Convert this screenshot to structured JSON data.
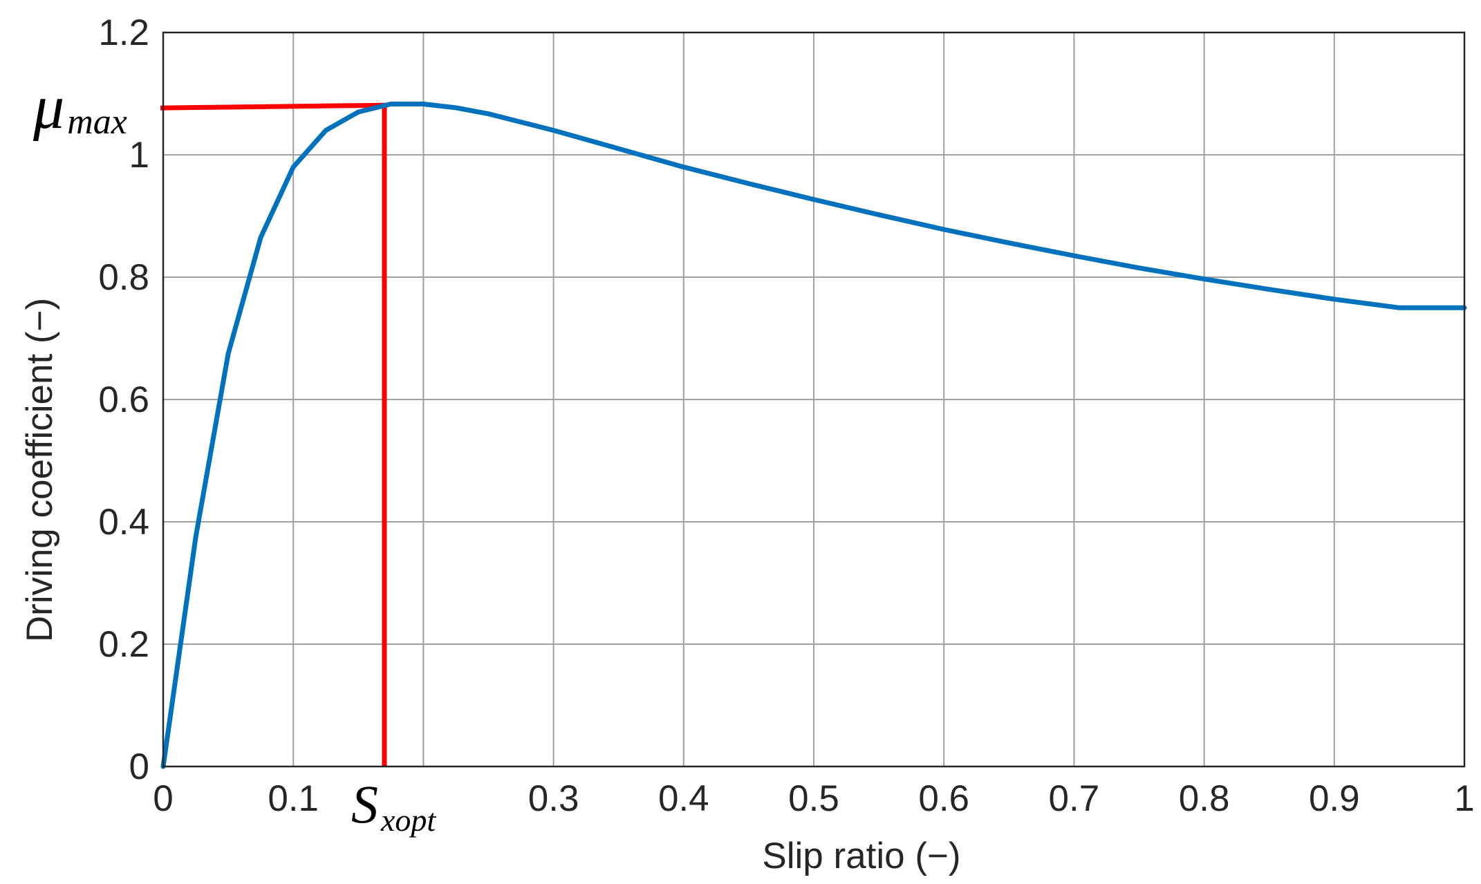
{
  "chart_data": {
    "type": "line",
    "xlabel": "Slip ratio  (−)",
    "ylabel": "Driving coefficient (−)",
    "xlim": [
      0,
      1
    ],
    "ylim": [
      0,
      1.2
    ],
    "x_ticks": [
      {
        "value": 0,
        "label": "0"
      },
      {
        "value": 0.1,
        "label": "0.1"
      },
      {
        "value": 0.3,
        "label": "0.3"
      },
      {
        "value": 0.4,
        "label": "0.4"
      },
      {
        "value": 0.5,
        "label": "0.5"
      },
      {
        "value": 0.6,
        "label": "0.6"
      },
      {
        "value": 0.7,
        "label": "0.7"
      },
      {
        "value": 0.8,
        "label": "0.8"
      },
      {
        "value": 0.9,
        "label": "0.9"
      },
      {
        "value": 1,
        "label": "1"
      }
    ],
    "x_grid": [
      0,
      0.1,
      0.2,
      0.3,
      0.4,
      0.5,
      0.6,
      0.7,
      0.8,
      0.9,
      1
    ],
    "y_ticks": [
      {
        "value": 0,
        "label": "0"
      },
      {
        "value": 0.2,
        "label": "0.2"
      },
      {
        "value": 0.4,
        "label": "0.4"
      },
      {
        "value": 0.6,
        "label": "0.6"
      },
      {
        "value": 0.8,
        "label": "0.8"
      },
      {
        "value": 1,
        "label": "1"
      },
      {
        "value": 1.2,
        "label": "1.2"
      }
    ],
    "grid": true,
    "series": [
      {
        "color": "#0072bd",
        "x": [
          0,
          0.025,
          0.05,
          0.075,
          0.1,
          0.125,
          0.15,
          0.175,
          0.2,
          0.225,
          0.25,
          0.3,
          0.35,
          0.4,
          0.45,
          0.5,
          0.55,
          0.6,
          0.65,
          0.7,
          0.75,
          0.8,
          0.85,
          0.9,
          0.95,
          1.0
        ],
        "y": [
          0,
          0.375,
          0.675,
          0.865,
          0.98,
          1.04,
          1.07,
          1.083,
          1.083,
          1.077,
          1.067,
          1.04,
          1.01,
          0.98,
          0.953,
          0.927,
          0.902,
          0.878,
          0.856,
          0.835,
          0.815,
          0.797,
          0.78,
          0.764,
          0.75,
          0.75
        ]
      }
    ],
    "annotations": {
      "mu_max": {
        "value": 1.08,
        "main": "μ",
        "sub": "max",
        "color": "#ff0000"
      },
      "s_xopt": {
        "value": 0.17,
        "main": "S",
        "sub": "xopt",
        "color": "#ff0000"
      }
    },
    "colors": {
      "axis": "#262626",
      "grid": "#a0a0a0",
      "line": "#0072bd",
      "marker": "#ff0000"
    }
  }
}
